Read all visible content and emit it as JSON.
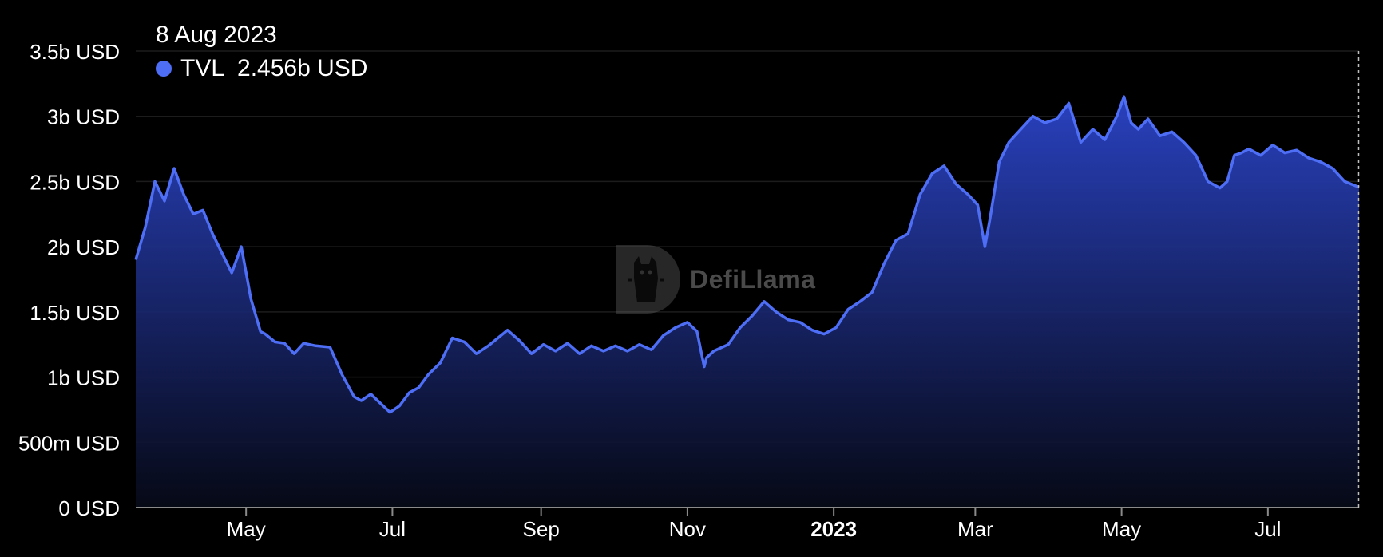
{
  "tooltip": {
    "date": "8 Aug 2023",
    "series_name": "TVL",
    "value": "2.456b USD"
  },
  "watermark": {
    "text": "DefiLlama"
  },
  "colors": {
    "line": "#4d6ef5",
    "area_top": "#2b44c8",
    "area_bottom": "#070a18",
    "grid": "#1c1c1c",
    "axis": "#8a8a8a",
    "hover": "#bfbfbf",
    "background": "#000000"
  },
  "chart_data": {
    "type": "area",
    "title": "",
    "xlabel": "",
    "ylabel": "",
    "grid": true,
    "ylim": [
      0,
      3500000000
    ],
    "xlim": [
      "2022-03-16",
      "2023-08-08"
    ],
    "y_ticks": [
      {
        "value": 0,
        "label": "0 USD"
      },
      {
        "value": 500000000,
        "label": "500m USD"
      },
      {
        "value": 1000000000,
        "label": "1b USD"
      },
      {
        "value": 1500000000,
        "label": "1.5b USD"
      },
      {
        "value": 2000000000,
        "label": "2b USD"
      },
      {
        "value": 2500000000,
        "label": "2.5b USD"
      },
      {
        "value": 3000000000,
        "label": "3b USD"
      },
      {
        "value": 3500000000,
        "label": "3.5b USD"
      }
    ],
    "x_ticks": [
      {
        "date": "2022-05-01",
        "label": "May",
        "bold": false
      },
      {
        "date": "2022-07-01",
        "label": "Jul",
        "bold": false
      },
      {
        "date": "2022-09-01",
        "label": "Sep",
        "bold": false
      },
      {
        "date": "2022-11-01",
        "label": "Nov",
        "bold": false
      },
      {
        "date": "2023-01-01",
        "label": "2023",
        "bold": true
      },
      {
        "date": "2023-03-01",
        "label": "Mar",
        "bold": false
      },
      {
        "date": "2023-05-01",
        "label": "May",
        "bold": false
      },
      {
        "date": "2023-07-01",
        "label": "Jul",
        "bold": false
      }
    ],
    "series": [
      {
        "name": "TVL",
        "x": [
          "2022-03-16",
          "2022-03-20",
          "2022-03-24",
          "2022-03-28",
          "2022-04-01",
          "2022-04-05",
          "2022-04-09",
          "2022-04-13",
          "2022-04-17",
          "2022-04-21",
          "2022-04-25",
          "2022-04-29",
          "2022-05-03",
          "2022-05-07",
          "2022-05-09",
          "2022-05-11",
          "2022-05-13",
          "2022-05-17",
          "2022-05-21",
          "2022-05-25",
          "2022-05-30",
          "2022-06-05",
          "2022-06-10",
          "2022-06-15",
          "2022-06-18",
          "2022-06-22",
          "2022-06-26",
          "2022-06-30",
          "2022-07-04",
          "2022-07-08",
          "2022-07-12",
          "2022-07-16",
          "2022-07-21",
          "2022-07-26",
          "2022-07-31",
          "2022-08-05",
          "2022-08-10",
          "2022-08-14",
          "2022-08-18",
          "2022-08-23",
          "2022-08-28",
          "2022-09-02",
          "2022-09-07",
          "2022-09-12",
          "2022-09-17",
          "2022-09-22",
          "2022-09-27",
          "2022-10-02",
          "2022-10-07",
          "2022-10-12",
          "2022-10-17",
          "2022-10-22",
          "2022-10-27",
          "2022-11-01",
          "2022-11-05",
          "2022-11-08",
          "2022-11-09",
          "2022-11-12",
          "2022-11-18",
          "2022-11-23",
          "2022-11-28",
          "2022-12-03",
          "2022-12-08",
          "2022-12-13",
          "2022-12-18",
          "2022-12-23",
          "2022-12-28",
          "2023-01-02",
          "2023-01-07",
          "2023-01-12",
          "2023-01-17",
          "2023-01-22",
          "2023-01-27",
          "2023-02-01",
          "2023-02-06",
          "2023-02-11",
          "2023-02-16",
          "2023-02-21",
          "2023-02-26",
          "2023-03-02",
          "2023-03-05",
          "2023-03-07",
          "2023-03-11",
          "2023-03-15",
          "2023-03-20",
          "2023-03-25",
          "2023-03-30",
          "2023-04-04",
          "2023-04-09",
          "2023-04-14",
          "2023-04-19",
          "2023-04-24",
          "2023-04-29",
          "2023-05-02",
          "2023-05-05",
          "2023-05-08",
          "2023-05-12",
          "2023-05-17",
          "2023-05-22",
          "2023-05-27",
          "2023-06-01",
          "2023-06-06",
          "2023-06-11",
          "2023-06-14",
          "2023-06-17",
          "2023-06-20",
          "2023-06-23",
          "2023-06-28",
          "2023-07-03",
          "2023-07-08",
          "2023-07-13",
          "2023-07-18",
          "2023-07-23",
          "2023-07-28",
          "2023-08-02",
          "2023-08-08"
        ],
        "values": [
          1900000000,
          2150000000,
          2500000000,
          2350000000,
          2600000000,
          2400000000,
          2250000000,
          2280000000,
          2100000000,
          1950000000,
          1800000000,
          2000000000,
          1600000000,
          1350000000,
          1330000000,
          1300000000,
          1270000000,
          1260000000,
          1180000000,
          1260000000,
          1240000000,
          1230000000,
          1020000000,
          850000000,
          820000000,
          870000000,
          800000000,
          730000000,
          780000000,
          880000000,
          920000000,
          1020000000,
          1110000000,
          1300000000,
          1270000000,
          1180000000,
          1240000000,
          1300000000,
          1360000000,
          1280000000,
          1180000000,
          1250000000,
          1200000000,
          1260000000,
          1180000000,
          1240000000,
          1200000000,
          1240000000,
          1200000000,
          1250000000,
          1210000000,
          1320000000,
          1380000000,
          1420000000,
          1350000000,
          1080000000,
          1150000000,
          1200000000,
          1250000000,
          1380000000,
          1470000000,
          1580000000,
          1500000000,
          1440000000,
          1420000000,
          1360000000,
          1330000000,
          1380000000,
          1520000000,
          1580000000,
          1650000000,
          1870000000,
          2050000000,
          2100000000,
          2400000000,
          2560000000,
          2620000000,
          2480000000,
          2400000000,
          2320000000,
          2000000000,
          2200000000,
          2650000000,
          2800000000,
          2900000000,
          3000000000,
          2950000000,
          2980000000,
          3100000000,
          2800000000,
          2900000000,
          2820000000,
          3000000000,
          3150000000,
          2950000000,
          2900000000,
          2980000000,
          2850000000,
          2880000000,
          2800000000,
          2700000000,
          2500000000,
          2450000000,
          2500000000,
          2700000000,
          2720000000,
          2750000000,
          2700000000,
          2780000000,
          2720000000,
          2740000000,
          2680000000,
          2650000000,
          2600000000,
          2500000000,
          2456000000
        ]
      }
    ]
  }
}
